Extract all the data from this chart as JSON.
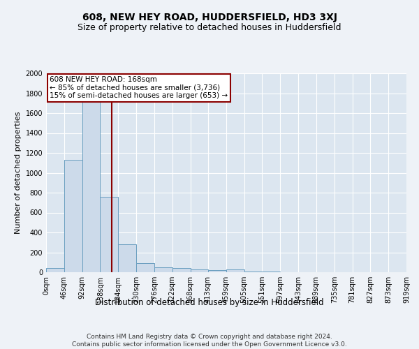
{
  "title": "608, NEW HEY ROAD, HUDDERSFIELD, HD3 3XJ",
  "subtitle": "Size of property relative to detached houses in Huddersfield",
  "xlabel": "Distribution of detached houses by size in Huddersfield",
  "ylabel": "Number of detached properties",
  "footer": "Contains HM Land Registry data © Crown copyright and database right 2024.\nContains public sector information licensed under the Open Government Licence v3.0.",
  "bar_color": "#ccdaea",
  "bar_edge_color": "#6a9ec0",
  "bar_edge_width": 0.7,
  "annotation_line_color": "#8b0000",
  "property_size": 168,
  "annotation_title": "608 NEW HEY ROAD: 168sqm",
  "annotation_line1": "← 85% of detached houses are smaller (3,736)",
  "annotation_line2": "15% of semi-detached houses are larger (653) →",
  "ylim": [
    0,
    2000
  ],
  "yticks": [
    0,
    200,
    400,
    600,
    800,
    1000,
    1200,
    1400,
    1600,
    1800,
    2000
  ],
  "bin_edges": [
    0,
    46,
    92,
    138,
    184,
    230,
    276,
    322,
    368,
    413,
    459,
    505,
    551,
    597,
    643,
    689,
    735,
    781,
    827,
    873,
    919
  ],
  "bar_heights": [
    40,
    1130,
    1920,
    760,
    280,
    90,
    50,
    45,
    25,
    20,
    25,
    8,
    5,
    3,
    2,
    2,
    2,
    1,
    1,
    1
  ],
  "tick_labels": [
    "0sqm",
    "46sqm",
    "92sqm",
    "138sqm",
    "184sqm",
    "230sqm",
    "276sqm",
    "322sqm",
    "368sqm",
    "413sqm",
    "459sqm",
    "505sqm",
    "551sqm",
    "597sqm",
    "643sqm",
    "689sqm",
    "735sqm",
    "781sqm",
    "827sqm",
    "873sqm",
    "919sqm"
  ],
  "background_color": "#eef2f7",
  "plot_bg_color": "#dce6f0",
  "grid_color": "#ffffff",
  "title_fontsize": 10,
  "subtitle_fontsize": 9,
  "xlabel_fontsize": 8.5,
  "ylabel_fontsize": 8,
  "tick_fontsize": 7,
  "footer_fontsize": 6.5,
  "annotation_fontsize": 7.5
}
